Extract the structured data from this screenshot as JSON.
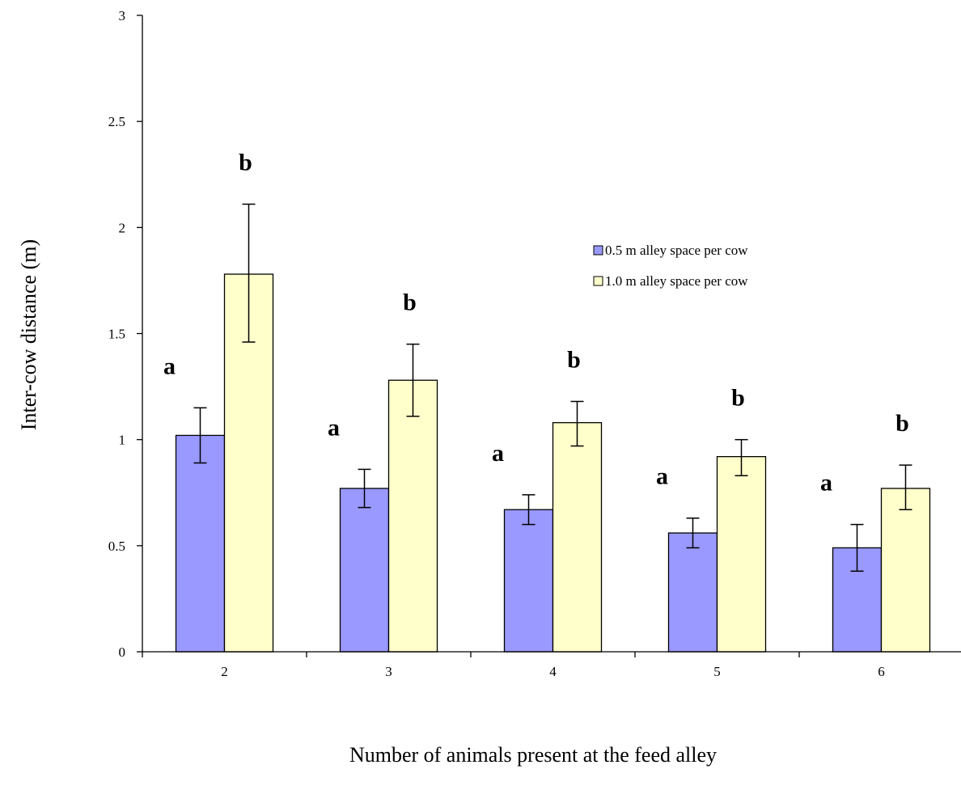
{
  "chart_data": {
    "type": "bar",
    "title": "",
    "xlabel": "Number of animals present at the feed alley",
    "ylabel": "Inter-cow distance (m)",
    "ylim": [
      0,
      3
    ],
    "yticks": [
      "0",
      "0.5",
      "1",
      "1.5",
      "2",
      "2.5",
      "3"
    ],
    "categories": [
      "2",
      "3",
      "4",
      "5",
      "6"
    ],
    "series": [
      {
        "name": "0.5 m alley space per cow",
        "color": "#9999ff",
        "values": [
          1.02,
          0.77,
          0.67,
          0.56,
          0.49
        ],
        "error_low": [
          0.89,
          0.68,
          0.6,
          0.49,
          0.38
        ],
        "error_high": [
          1.15,
          0.86,
          0.74,
          0.63,
          0.6
        ],
        "significance": [
          "a",
          "a",
          "a",
          "a",
          "a"
        ]
      },
      {
        "name": "1.0 m alley space per cow",
        "color": "#ffffcc",
        "values": [
          1.78,
          1.28,
          1.08,
          0.92,
          0.77
        ],
        "error_low": [
          1.46,
          1.11,
          0.97,
          0.83,
          0.67
        ],
        "error_high": [
          2.11,
          1.45,
          1.18,
          1.0,
          0.88
        ],
        "significance": [
          "b",
          "b",
          "b",
          "b",
          "b"
        ]
      }
    ],
    "grid": false,
    "legend_position": "right"
  }
}
